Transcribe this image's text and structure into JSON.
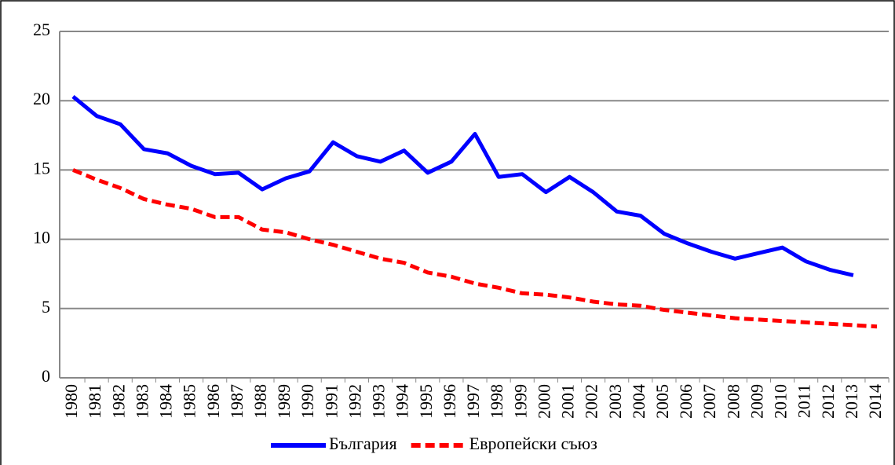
{
  "chart_data": {
    "type": "line",
    "categories": [
      "1980",
      "1981",
      "1982",
      "1983",
      "1984",
      "1985",
      "1986",
      "1987",
      "1988",
      "1989",
      "1990",
      "1991",
      "1992",
      "1993",
      "1994",
      "1995",
      "1996",
      "1997",
      "1998",
      "1999",
      "2000",
      "2001",
      "2002",
      "2003",
      "2004",
      "2005",
      "2006",
      "2007",
      "2008",
      "2009",
      "2010",
      "2011",
      "2012",
      "2013",
      "2014"
    ],
    "series": [
      {
        "name": "България",
        "color": "#0000ff",
        "dash": false,
        "values": [
          20.3,
          18.9,
          18.3,
          16.5,
          16.2,
          15.3,
          14.7,
          14.8,
          13.6,
          14.4,
          14.9,
          17.0,
          16.0,
          15.6,
          16.4,
          14.8,
          15.6,
          17.6,
          14.5,
          14.7,
          13.4,
          14.5,
          13.4,
          12.0,
          11.7,
          10.4,
          9.7,
          9.1,
          8.6,
          9.0,
          9.4,
          8.4,
          7.8,
          7.4,
          null
        ]
      },
      {
        "name": "Европейски съюз",
        "color": "#ff0000",
        "dash": true,
        "values": [
          15.0,
          14.3,
          13.7,
          12.9,
          12.5,
          12.2,
          11.6,
          11.6,
          10.7,
          10.5,
          10.0,
          9.6,
          9.1,
          8.6,
          8.3,
          7.6,
          7.3,
          6.8,
          6.5,
          6.1,
          6.0,
          5.8,
          5.5,
          5.3,
          5.2,
          4.9,
          4.7,
          4.5,
          4.3,
          4.2,
          4.1,
          4.0,
          3.9,
          3.8,
          3.7
        ]
      }
    ],
    "ylim": [
      0,
      25
    ],
    "yticks": [
      0,
      5,
      10,
      15,
      20,
      25
    ],
    "grid": true,
    "legend": "bottom"
  }
}
